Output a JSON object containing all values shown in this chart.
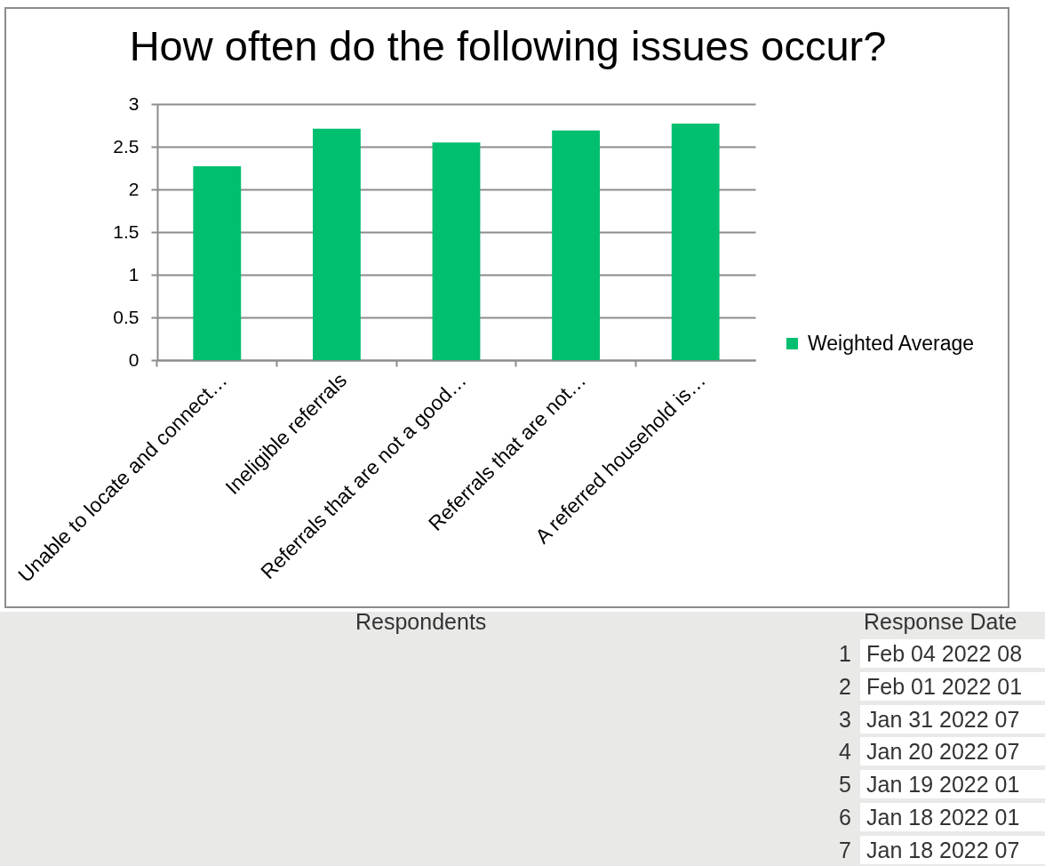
{
  "chart_data": {
    "type": "bar",
    "title": "How often do the following issues occur?",
    "categories": [
      "Unable to locate and connect…",
      "Ineligible referrals",
      "Referrals that are not a good…",
      "Referrals that are not…",
      "A referred household is…"
    ],
    "series": [
      {
        "name": "Weighted Average",
        "color": "#00bf6f",
        "values": [
          2.27,
          2.71,
          2.55,
          2.69,
          2.77
        ]
      }
    ],
    "ylim": [
      0,
      3
    ],
    "yticks": [
      0,
      0.5,
      1,
      1.5,
      2,
      2.5,
      3
    ],
    "grid": "y",
    "legend": "right",
    "annotations": [
      "Respondents",
      "Response Date",
      "1",
      "Feb 04 2022 08",
      "2",
      "Feb 01 2022 01",
      "3",
      "Jan 31 2022 07",
      "4",
      "Jan 20 2022 07",
      "5",
      "Jan 19 2022 01",
      "6",
      "Jan 18 2022 01",
      "7",
      "Jan 18 2022 07"
    ]
  }
}
